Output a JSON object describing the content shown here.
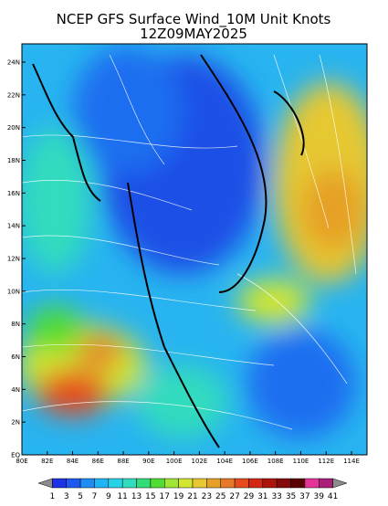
{
  "header": {
    "title": "NCEP GFS Surface Wind_10M Unit Knots",
    "subtitle": "12Z09MAY2025"
  },
  "map": {
    "x_labels": [
      "80E",
      "82E",
      "84E",
      "86E",
      "88E",
      "90E",
      "100E",
      "102E",
      "104E",
      "106E",
      "108E",
      "110E",
      "112E",
      "114E"
    ],
    "y_labels": [
      "EQ",
      "2N",
      "4N",
      "6N",
      "8N",
      "10N",
      "12N",
      "14N",
      "16N",
      "18N",
      "20N",
      "22N",
      "24N"
    ]
  },
  "colorbar": {
    "labels": [
      1,
      3,
      5,
      7,
      9,
      11,
      13,
      15,
      17,
      19,
      21,
      23,
      25,
      27,
      29,
      31,
      33,
      35,
      37,
      39,
      41
    ],
    "colors": [
      "#8c8c8c",
      "#1e32e6",
      "#1e5af0",
      "#1e8cf5",
      "#1eb4f5",
      "#28d2e6",
      "#32dcbe",
      "#32dc78",
      "#50dc32",
      "#a0e632",
      "#d2e632",
      "#e6c832",
      "#e6a028",
      "#e67828",
      "#e64b1e",
      "#d22814",
      "#aa140a",
      "#820a0a",
      "#5a0000",
      "#e6329b",
      "#aa1e78",
      "#8c8c8c"
    ]
  }
}
